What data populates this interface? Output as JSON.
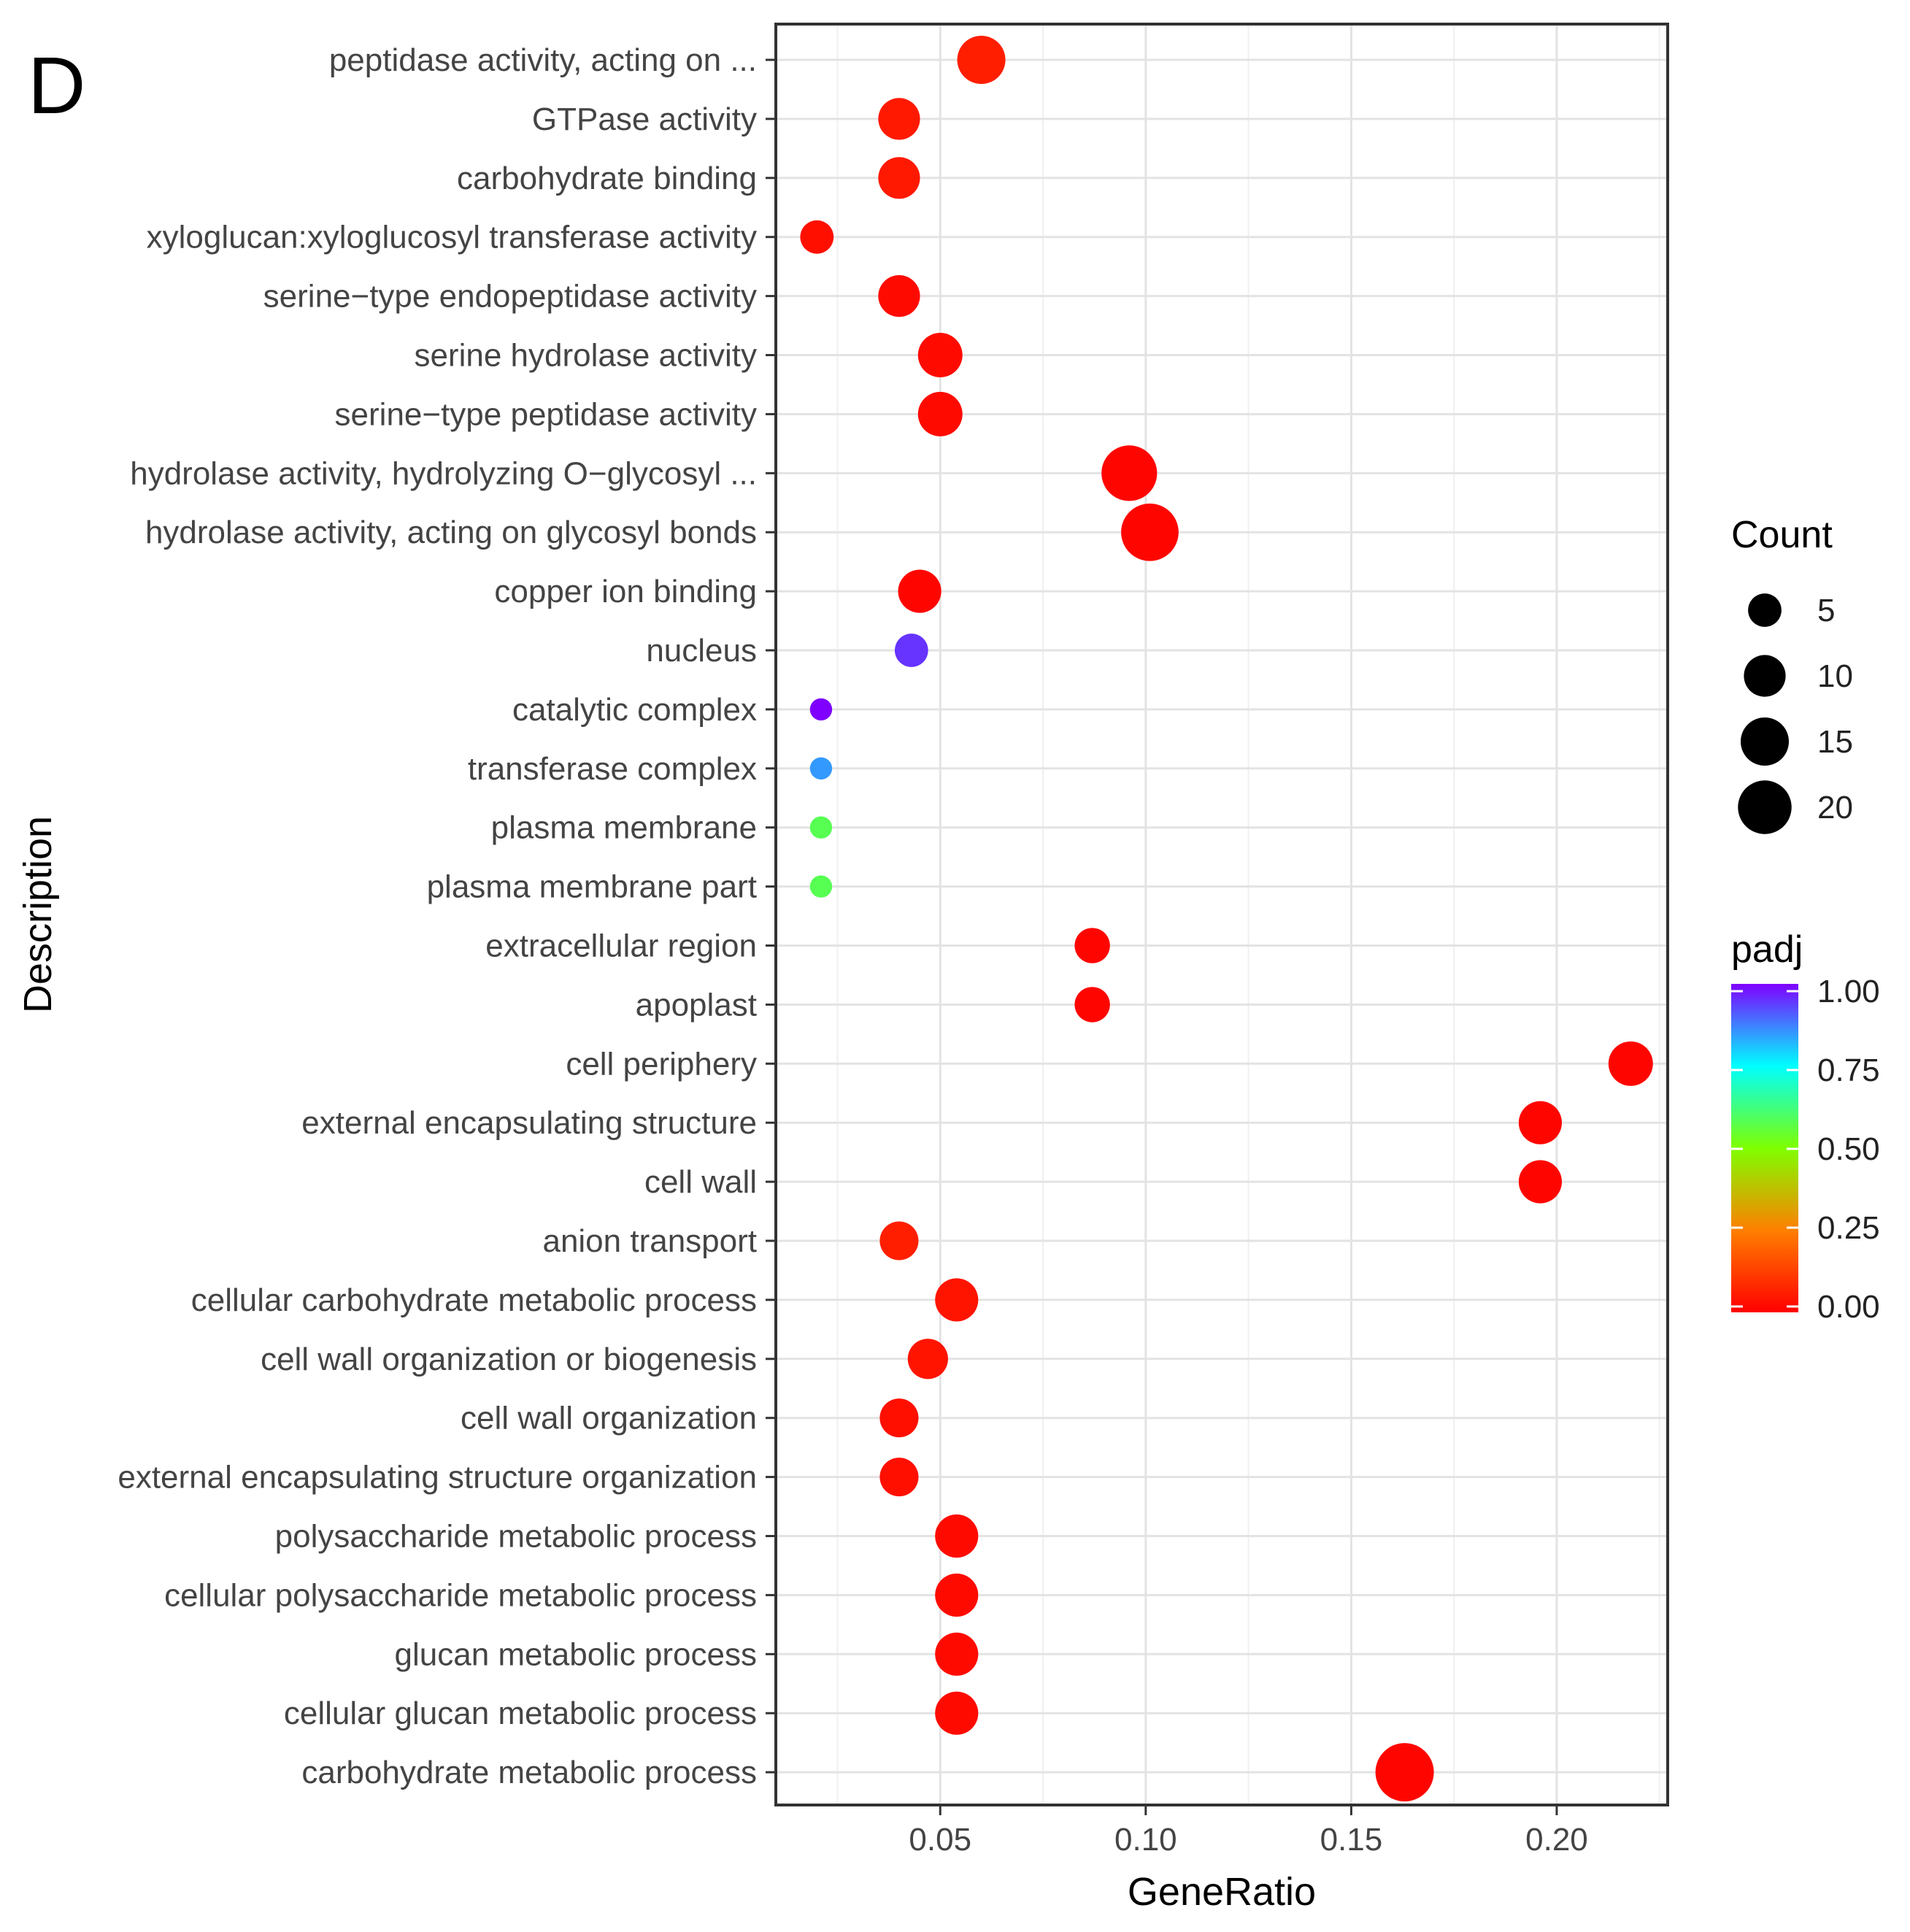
{
  "panel_letter": "D",
  "chart_data": {
    "type": "scatter",
    "subtype": "dot-plot",
    "title": "",
    "xlabel": "GeneRatio",
    "ylabel": "Description",
    "xlim": [
      0.01,
      0.227
    ],
    "xticks": [
      0.05,
      0.1,
      0.15,
      0.2
    ],
    "xtick_labels": [
      "0.05",
      "0.10",
      "0.15",
      "0.20"
    ],
    "grid": true,
    "points": [
      {
        "description": "peptidase activity, acting on ...",
        "gene_ratio": 0.06,
        "count": 15,
        "padj": 0.06
      },
      {
        "description": "GTPase activity",
        "gene_ratio": 0.04,
        "count": 10,
        "padj": 0.05
      },
      {
        "description": "carbohydrate binding",
        "gene_ratio": 0.04,
        "count": 10,
        "padj": 0.05
      },
      {
        "description": "xyloglucan:xyloglucosyl transferase activity",
        "gene_ratio": 0.02,
        "count": 5,
        "padj": 0.03
      },
      {
        "description": "serine−type endopeptidase activity",
        "gene_ratio": 0.04,
        "count": 10,
        "padj": 0.02
      },
      {
        "description": "serine hydrolase activity",
        "gene_ratio": 0.05,
        "count": 12,
        "padj": 0.02
      },
      {
        "description": "serine−type peptidase activity",
        "gene_ratio": 0.05,
        "count": 12,
        "padj": 0.02
      },
      {
        "description": "hydrolase activity, hydrolyzing O−glycosyl ...",
        "gene_ratio": 0.096,
        "count": 22,
        "padj": 0.01
      },
      {
        "description": "hydrolase activity, acting on glycosyl bonds",
        "gene_ratio": 0.101,
        "count": 24,
        "padj": 0.01
      },
      {
        "description": "copper ion binding",
        "gene_ratio": 0.045,
        "count": 11,
        "padj": 0.01
      },
      {
        "description": "nucleus",
        "gene_ratio": 0.043,
        "count": 5,
        "padj": 0.95
      },
      {
        "description": "catalytic complex",
        "gene_ratio": 0.021,
        "count": 1,
        "padj": 1.0
      },
      {
        "description": "transferase complex",
        "gene_ratio": 0.021,
        "count": 1,
        "padj": 0.85
      },
      {
        "description": "plasma membrane",
        "gene_ratio": 0.021,
        "count": 1,
        "padj": 0.58
      },
      {
        "description": "plasma membrane part",
        "gene_ratio": 0.021,
        "count": 1,
        "padj": 0.58
      },
      {
        "description": "extracellular region",
        "gene_ratio": 0.087,
        "count": 6,
        "padj": 0.01
      },
      {
        "description": "apoplast",
        "gene_ratio": 0.087,
        "count": 6,
        "padj": 0.01
      },
      {
        "description": "cell periphery",
        "gene_ratio": 0.218,
        "count": 12,
        "padj": 0.01
      },
      {
        "description": "external encapsulating structure",
        "gene_ratio": 0.196,
        "count": 11,
        "padj": 0.01
      },
      {
        "description": "cell wall",
        "gene_ratio": 0.196,
        "count": 11,
        "padj": 0.01
      },
      {
        "description": "anion transport",
        "gene_ratio": 0.04,
        "count": 8,
        "padj": 0.06
      },
      {
        "description": "cellular carbohydrate metabolic process",
        "gene_ratio": 0.054,
        "count": 11,
        "padj": 0.04
      },
      {
        "description": "cell wall organization or biogenesis",
        "gene_ratio": 0.047,
        "count": 9,
        "padj": 0.04
      },
      {
        "description": "cell wall organization",
        "gene_ratio": 0.04,
        "count": 8,
        "padj": 0.03
      },
      {
        "description": "external encapsulating structure organization",
        "gene_ratio": 0.04,
        "count": 8,
        "padj": 0.03
      },
      {
        "description": "polysaccharide metabolic process",
        "gene_ratio": 0.054,
        "count": 11,
        "padj": 0.02
      },
      {
        "description": "cellular polysaccharide metabolic process",
        "gene_ratio": 0.054,
        "count": 11,
        "padj": 0.02
      },
      {
        "description": "glucan metabolic process",
        "gene_ratio": 0.054,
        "count": 11,
        "padj": 0.02
      },
      {
        "description": "cellular glucan metabolic process",
        "gene_ratio": 0.054,
        "count": 11,
        "padj": 0.02
      },
      {
        "description": "carbohydrate metabolic process",
        "gene_ratio": 0.163,
        "count": 25,
        "padj": 0.01
      }
    ],
    "legend_size": {
      "title": "Count",
      "values": [
        5,
        10,
        15,
        20
      ],
      "labels": [
        "5",
        "10",
        "15",
        "20"
      ]
    },
    "legend_color": {
      "title": "padj",
      "ticks": [
        1.0,
        0.75,
        0.5,
        0.25,
        0.0
      ],
      "labels": [
        "1.00",
        "0.75",
        "0.50",
        "0.25",
        "0.00"
      ],
      "colors": [
        "#ff0000",
        "#ff7f00",
        "#7fff00",
        "#00ffff",
        "#7f00ff"
      ]
    },
    "legend_position": "right"
  }
}
